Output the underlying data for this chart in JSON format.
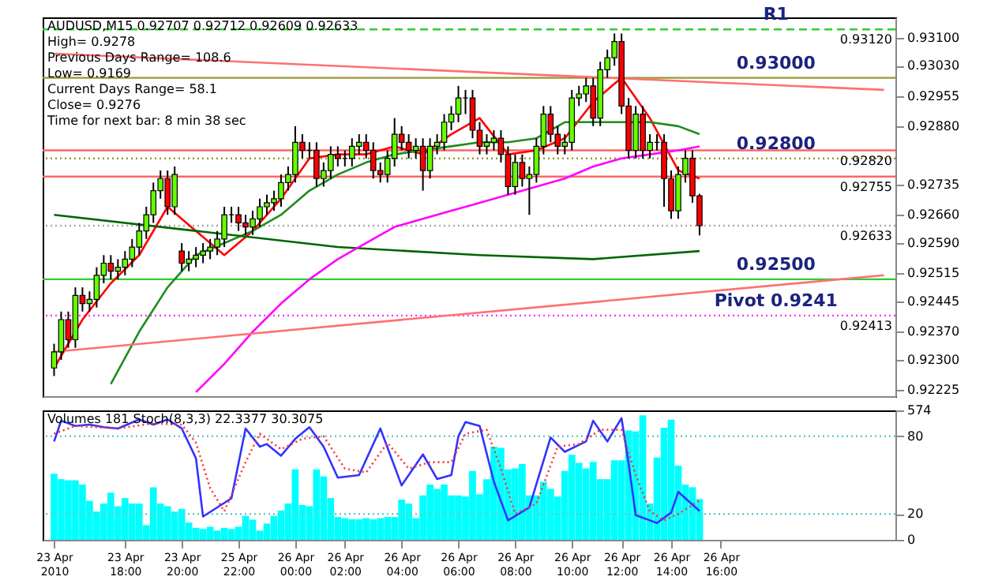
{
  "chart_data": [
    {
      "type": "candlestick",
      "title": "AUDUSD,M15  0.92707 0.92712 0.92609 0.92633",
      "annotations": [
        "High= 0.9278",
        "Previous Days Range= 108.6",
        "Low= 0.9169",
        "Current Days Range= 58.1",
        "Close= 0.9276",
        "Time for next bar: 8 min 38 sec",
        {
          "text": "0.93120",
          "y": 0.9312
        },
        {
          "text": "0.92820",
          "y": 0.9282
        },
        {
          "text": "0.92755",
          "y": 0.92755
        },
        {
          "text": "0.92633",
          "y": 0.92633
        },
        {
          "text": "0.92413",
          "y": 0.9241
        }
      ],
      "categories": [
        null,
        null,
        null,
        null,
        null,
        null,
        null,
        null,
        null,
        null,
        null,
        null,
        null,
        null,
        null,
        null,
        null,
        null,
        null,
        null,
        null,
        null,
        null,
        null,
        null,
        null,
        null,
        null,
        null,
        null,
        null,
        null,
        null,
        null,
        null,
        null,
        null,
        null,
        null,
        null,
        null,
        null,
        null,
        null,
        null,
        null,
        null,
        null,
        null,
        null,
        null,
        null,
        null,
        null,
        null,
        null,
        null,
        null,
        null,
        null,
        null,
        null,
        null,
        null,
        null,
        null,
        null,
        null,
        null,
        null,
        null,
        null,
        null,
        null,
        null,
        null,
        null,
        null,
        null,
        null,
        null,
        null,
        null,
        null,
        null,
        null,
        null,
        null,
        null,
        null,
        null,
        null,
        null,
        null,
        null,
        null,
        null,
        null,
        null,
        null,
        null,
        null,
        null,
        null,
        null,
        null,
        null,
        null,
        null,
        null,
        null,
        null,
        null,
        null,
        null,
        null,
        null,
        null
      ],
      "ohlc": [
        [
          0.9228,
          0.9234,
          0.9226,
          0.9232
        ],
        [
          0.9232,
          0.9242,
          0.923,
          0.924
        ],
        [
          0.924,
          0.9242,
          0.9233,
          0.9235
        ],
        [
          0.9235,
          0.9248,
          0.9233,
          0.9246
        ],
        [
          0.9246,
          0.9248,
          0.9242,
          0.9244
        ],
        [
          0.9244,
          0.9247,
          0.9242,
          0.9245
        ],
        [
          0.9245,
          0.9253,
          0.9243,
          0.9251
        ],
        [
          0.9251,
          0.9256,
          0.9249,
          0.9254
        ],
        [
          0.9254,
          0.9256,
          0.925,
          0.9252
        ],
        [
          0.9252,
          0.9255,
          0.925,
          0.9253
        ],
        [
          0.9253,
          0.9257,
          0.9251,
          0.9255
        ],
        [
          0.9255,
          0.926,
          0.9253,
          0.9258
        ],
        [
          0.9258,
          0.9264,
          0.9256,
          0.9262
        ],
        [
          0.9262,
          0.9268,
          0.926,
          0.9266
        ],
        [
          0.9266,
          0.9274,
          0.9264,
          0.9272
        ],
        [
          0.9272,
          0.9277,
          0.927,
          0.9275
        ],
        [
          0.9275,
          0.9277,
          0.9266,
          0.9268
        ],
        [
          0.9268,
          0.9278,
          0.9266,
          0.9276
        ],
        [
          0.9257,
          0.9259,
          0.9252,
          0.9254
        ],
        [
          0.9254,
          0.9257,
          0.9252,
          0.9255
        ],
        [
          0.9255,
          0.9258,
          0.9253,
          0.9256
        ],
        [
          0.9256,
          0.9259,
          0.9254,
          0.9257
        ],
        [
          0.9257,
          0.926,
          0.9255,
          0.9258
        ],
        [
          0.9258,
          0.9262,
          0.9256,
          0.926
        ],
        [
          0.926,
          0.9268,
          0.9258,
          0.9266
        ],
        [
          0.9266,
          0.9268,
          0.9264,
          0.9266
        ],
        [
          0.9266,
          0.9268,
          0.9262,
          0.9264
        ],
        [
          0.9264,
          0.9266,
          0.9261,
          0.9263
        ],
        [
          0.9263,
          0.9267,
          0.9261,
          0.9265
        ],
        [
          0.9265,
          0.927,
          0.9263,
          0.9268
        ],
        [
          0.9268,
          0.9271,
          0.9266,
          0.9269
        ],
        [
          0.9269,
          0.9272,
          0.9267,
          0.927
        ],
        [
          0.927,
          0.9276,
          0.9268,
          0.9274
        ],
        [
          0.9274,
          0.9278,
          0.9272,
          0.9276
        ],
        [
          0.9276,
          0.9288,
          0.9274,
          0.9284
        ],
        [
          0.9284,
          0.9286,
          0.928,
          0.9282
        ],
        [
          0.9282,
          0.9284,
          0.928,
          0.9282
        ],
        [
          0.9282,
          0.9284,
          0.9273,
          0.9275
        ],
        [
          0.9275,
          0.9279,
          0.9273,
          0.9277
        ],
        [
          0.9277,
          0.9283,
          0.9275,
          0.9281
        ],
        [
          0.9281,
          0.9283,
          0.9278,
          0.928
        ],
        [
          0.928,
          0.9282,
          0.9278,
          0.928
        ],
        [
          0.928,
          0.9285,
          0.9278,
          0.9283
        ],
        [
          0.9283,
          0.9286,
          0.9281,
          0.9284
        ],
        [
          0.9284,
          0.9286,
          0.928,
          0.9282
        ],
        [
          0.9282,
          0.9284,
          0.9275,
          0.9277
        ],
        [
          0.9277,
          0.9279,
          0.9274,
          0.9276
        ],
        [
          0.9276,
          0.9282,
          0.9274,
          0.928
        ],
        [
          0.928,
          0.929,
          0.9278,
          0.9286
        ],
        [
          0.9286,
          0.9288,
          0.9282,
          0.9284
        ],
        [
          0.9284,
          0.9286,
          0.928,
          0.9282
        ],
        [
          0.9282,
          0.9285,
          0.928,
          0.9283
        ],
        [
          0.9283,
          0.9285,
          0.9272,
          0.9277
        ],
        [
          0.9277,
          0.9285,
          0.9275,
          0.9283
        ],
        [
          0.9283,
          0.9286,
          0.9281,
          0.9284
        ],
        [
          0.9284,
          0.9291,
          0.9282,
          0.9289
        ],
        [
          0.9289,
          0.9293,
          0.9287,
          0.9291
        ],
        [
          0.9291,
          0.9298,
          0.9289,
          0.9295
        ],
        [
          0.9295,
          0.9297,
          0.9291,
          0.9295
        ],
        [
          0.9295,
          0.9297,
          0.9285,
          0.9287
        ],
        [
          0.9287,
          0.9289,
          0.9281,
          0.9283
        ],
        [
          0.9283,
          0.9286,
          0.9281,
          0.9284
        ],
        [
          0.9284,
          0.9287,
          0.9282,
          0.9285
        ],
        [
          0.9285,
          0.9287,
          0.9279,
          0.9281
        ],
        [
          0.9281,
          0.9283,
          0.9271,
          0.9273
        ],
        [
          0.9273,
          0.9281,
          0.9271,
          0.9279
        ],
        [
          0.9279,
          0.9281,
          0.9273,
          0.9275
        ],
        [
          0.9275,
          0.9278,
          0.9266,
          0.9276
        ],
        [
          0.9276,
          0.9285,
          0.9274,
          0.9283
        ],
        [
          0.9283,
          0.9293,
          0.9281,
          0.9291
        ],
        [
          0.9291,
          0.9293,
          0.9284,
          0.9286
        ],
        [
          0.9286,
          0.9288,
          0.9281,
          0.9283
        ],
        [
          0.9283,
          0.9286,
          0.9281,
          0.9284
        ],
        [
          0.9284,
          0.9297,
          0.9282,
          0.9295
        ],
        [
          0.9295,
          0.9298,
          0.9293,
          0.9296
        ],
        [
          0.9296,
          0.93,
          0.9294,
          0.9298
        ],
        [
          0.9298,
          0.93,
          0.9288,
          0.929
        ],
        [
          0.929,
          0.9304,
          0.9288,
          0.9302
        ],
        [
          0.9302,
          0.9307,
          0.93,
          0.9305
        ],
        [
          0.9305,
          0.9311,
          0.9303,
          0.9309
        ],
        [
          0.9309,
          0.9311,
          0.9291,
          0.9293
        ],
        [
          0.9293,
          0.9295,
          0.928,
          0.9282
        ],
        [
          0.9282,
          0.9293,
          0.928,
          0.9291
        ],
        [
          0.9291,
          0.9293,
          0.928,
          0.9282
        ],
        [
          0.9282,
          0.9286,
          0.928,
          0.9284
        ],
        [
          0.9284,
          0.9286,
          0.9282,
          0.9284
        ],
        [
          0.9284,
          0.9286,
          0.9268,
          0.9275
        ],
        [
          0.9275,
          0.9277,
          0.9265,
          0.9267
        ],
        [
          0.9267,
          0.9278,
          0.9265,
          0.9276
        ],
        [
          0.9276,
          0.9282,
          0.9274,
          0.928
        ],
        [
          0.928,
          0.9282,
          0.9269,
          0.92707
        ],
        [
          0.92707,
          0.92712,
          0.92609,
          0.92633
        ],
        null,
        null,
        null,
        null,
        null,
        null,
        null,
        null,
        null,
        null,
        null,
        null,
        null,
        null,
        null,
        null,
        null,
        null,
        null,
        null,
        null,
        null,
        null,
        null,
        null,
        null
      ],
      "series": [
        {
          "type": "line",
          "color": "#ff0000",
          "values": [
            0.9228,
            null,
            null,
            null,
            0.924,
            null,
            null,
            null,
            0.9249,
            null,
            null,
            null,
            0.9256,
            null,
            null,
            null,
            0.9268,
            null,
            null,
            null,
            0.9262,
            null,
            null,
            null,
            0.9256,
            null,
            null,
            null,
            0.9262,
            null,
            null,
            null,
            0.927,
            null,
            null,
            null,
            0.928,
            null,
            null,
            null,
            0.9281,
            null,
            null,
            null,
            0.9281,
            null,
            null,
            null,
            0.9283,
            null,
            null,
            null,
            0.9281,
            null,
            null,
            null,
            0.9286,
            null,
            null,
            null,
            0.929,
            null,
            null,
            null,
            0.9281,
            null,
            null,
            null,
            0.9282,
            null,
            null,
            null,
            0.9285,
            null,
            null,
            null,
            0.9294,
            null,
            null,
            null,
            0.93,
            null,
            null,
            null,
            0.929,
            null,
            null,
            null,
            0.9277,
            null,
            null,
            0.9275,
            null,
            null,
            null,
            null,
            null,
            null,
            null,
            null,
            null,
            null,
            null,
            null,
            null,
            null,
            null,
            null,
            null,
            null,
            null,
            null,
            null,
            null,
            null,
            null,
            null,
            null
          ]
        },
        {
          "type": "line",
          "color": "#1e8c1e",
          "values": [
            null,
            null,
            null,
            null,
            null,
            null,
            null,
            null,
            0.9224,
            null,
            null,
            null,
            0.9237,
            null,
            null,
            null,
            0.9248,
            null,
            null,
            null,
            0.9256,
            null,
            null,
            null,
            0.9259,
            null,
            null,
            null,
            0.9262,
            null,
            null,
            null,
            0.9266,
            null,
            null,
            null,
            0.9272,
            null,
            null,
            null,
            0.9276,
            null,
            null,
            null,
            0.9279,
            null,
            null,
            null,
            0.9281,
            null,
            null,
            null,
            0.9282,
            null,
            null,
            null,
            0.9283,
            null,
            null,
            null,
            0.9284,
            null,
            null,
            null,
            0.9284,
            null,
            null,
            null,
            0.9285,
            null,
            null,
            null,
            0.9289,
            null,
            null,
            null,
            0.9289,
            null,
            null,
            null,
            0.9289,
            null,
            null,
            null,
            0.9289,
            null,
            null,
            null,
            0.9288,
            null,
            null,
            0.9286,
            null,
            null,
            null,
            null,
            null,
            null,
            null,
            null,
            null,
            null,
            null,
            null,
            null,
            null,
            null,
            null,
            null,
            null,
            null,
            null,
            null,
            null,
            null,
            null,
            null,
            null
          ]
        },
        {
          "type": "line",
          "color": "#006400",
          "values": [
            0.9266,
            null,
            null,
            null,
            null,
            null,
            null,
            null,
            null,
            null,
            null,
            null,
            null,
            null,
            null,
            null,
            null,
            null,
            null,
            null,
            0.9262,
            null,
            null,
            null,
            null,
            null,
            null,
            null,
            null,
            null,
            null,
            null,
            null,
            null,
            null,
            null,
            null,
            null,
            null,
            null,
            0.9258,
            null,
            null,
            null,
            null,
            null,
            null,
            null,
            null,
            null,
            null,
            null,
            null,
            null,
            null,
            null,
            null,
            null,
            null,
            null,
            0.9256,
            null,
            null,
            null,
            null,
            null,
            null,
            null,
            null,
            null,
            null,
            null,
            null,
            null,
            null,
            null,
            0.9255,
            null,
            null,
            null,
            null,
            null,
            null,
            null,
            null,
            null,
            null,
            null,
            null,
            null,
            null,
            0.9257,
            null,
            null,
            null,
            null,
            null,
            null,
            null,
            null,
            null,
            null,
            null,
            null,
            null,
            null,
            null,
            null,
            null,
            null,
            null,
            null,
            null,
            null,
            null,
            null,
            null,
            null
          ]
        },
        {
          "type": "line",
          "color": "#ff00ff",
          "values": [
            null,
            null,
            null,
            null,
            null,
            null,
            null,
            null,
            null,
            null,
            null,
            null,
            null,
            null,
            null,
            null,
            null,
            null,
            null,
            null,
            0.9222,
            null,
            null,
            null,
            0.9229,
            null,
            null,
            null,
            0.9237,
            null,
            null,
            null,
            0.9244,
            null,
            null,
            null,
            0.925,
            null,
            null,
            null,
            0.9255,
            null,
            null,
            null,
            0.9259,
            null,
            null,
            null,
            0.9263,
            null,
            null,
            null,
            0.9265,
            null,
            null,
            null,
            0.9267,
            null,
            null,
            null,
            0.9269,
            null,
            null,
            null,
            0.9271,
            null,
            null,
            null,
            0.9273,
            null,
            null,
            null,
            0.9275,
            null,
            null,
            null,
            0.9278,
            null,
            null,
            null,
            0.928,
            null,
            null,
            null,
            0.9281,
            null,
            null,
            null,
            0.9282,
            null,
            null,
            0.9283,
            null,
            null,
            null,
            null,
            null,
            null,
            null,
            null,
            null,
            null,
            null,
            null,
            null,
            null,
            null,
            null,
            null,
            null,
            null,
            null,
            null,
            null,
            null,
            null,
            null,
            null
          ]
        },
        {
          "type": "line",
          "color": "#ff7070",
          "values": [
            0.9306,
            null,
            null,
            null,
            null,
            null,
            null,
            null,
            null,
            null,
            null,
            null,
            null,
            null,
            null,
            null,
            null,
            null,
            null,
            null,
            null,
            null,
            null,
            null,
            null,
            null,
            null,
            null,
            null,
            null,
            null,
            null,
            null,
            null,
            null,
            null,
            null,
            null,
            null,
            null,
            null,
            null,
            null,
            null,
            null,
            null,
            null,
            null,
            null,
            null,
            null,
            null,
            null,
            null,
            null,
            null,
            null,
            null,
            null,
            null,
            null,
            null,
            null,
            null,
            null,
            null,
            null,
            null,
            null,
            null,
            null,
            null,
            null,
            null,
            null,
            null,
            null,
            null,
            null,
            null,
            null,
            null,
            null,
            null,
            null,
            null,
            null,
            null,
            null,
            null,
            null,
            null,
            null,
            null,
            null,
            null,
            null,
            null,
            null,
            null,
            null,
            null,
            null,
            null,
            null,
            null,
            null,
            null,
            null,
            null,
            null,
            null,
            null,
            null,
            null,
            null,
            null,
            0.9297
          ]
        },
        {
          "type": "line",
          "color": "#ff7070",
          "values": [
            0.9232,
            null,
            null,
            null,
            null,
            null,
            null,
            null,
            null,
            null,
            null,
            null,
            null,
            null,
            null,
            null,
            null,
            null,
            null,
            null,
            null,
            null,
            null,
            null,
            null,
            null,
            null,
            null,
            null,
            null,
            null,
            null,
            null,
            null,
            null,
            null,
            null,
            null,
            null,
            null,
            null,
            null,
            null,
            null,
            null,
            null,
            null,
            null,
            null,
            null,
            null,
            null,
            null,
            null,
            null,
            null,
            null,
            null,
            null,
            null,
            null,
            null,
            null,
            null,
            null,
            null,
            null,
            null,
            null,
            null,
            null,
            null,
            null,
            null,
            null,
            null,
            null,
            null,
            null,
            null,
            null,
            null,
            null,
            null,
            null,
            null,
            null,
            null,
            null,
            null,
            null,
            null,
            null,
            null,
            null,
            null,
            null,
            null,
            null,
            null,
            null,
            null,
            null,
            null,
            null,
            null,
            null,
            null,
            null,
            null,
            null,
            null,
            null,
            null,
            null,
            null,
            null,
            0.9251
          ]
        }
      ],
      "ref_lines": [
        {
          "axis": "y",
          "value": 0.9312,
          "label": "R1",
          "color": "#33cc33",
          "line_style": "dashed"
        },
        {
          "axis": "y",
          "value": 0.93,
          "label": "0.93000",
          "color": "#999933"
        },
        {
          "axis": "y",
          "value": 0.9282,
          "color": "#ff6666"
        },
        {
          "axis": "y",
          "value": 0.928,
          "label": "0.92800",
          "color": "#999933",
          "line_style": "dotted"
        },
        {
          "axis": "y",
          "value": 0.92755,
          "color": "#ff6666"
        },
        {
          "axis": "y",
          "value": 0.92633,
          "color": "#aaaaaa",
          "line_style": "dotted"
        },
        {
          "axis": "y",
          "value": 0.925,
          "label": "0.92500",
          "color": "#33cc33"
        },
        {
          "axis": "y",
          "value": 0.9241,
          "label": "Pivot 0.9241",
          "color": "#ff33ff",
          "line_style": "dotted"
        }
      ],
      "ylim": [
        0.9221,
        0.9315
      ],
      "yticks": [
        {
          "value": 0.931,
          "label": "0.93100"
        },
        {
          "value": 0.9303,
          "label": "0.93030"
        },
        {
          "value": 0.92955,
          "label": "0.92955"
        },
        {
          "value": 0.9288,
          "label": "0.92880"
        },
        {
          "value": 0.92735,
          "label": "0.92735"
        },
        {
          "value": 0.9266,
          "label": "0.92660"
        },
        {
          "value": 0.9259,
          "label": "0.92590"
        },
        {
          "value": 0.92515,
          "label": "0.92515"
        },
        {
          "value": 0.92445,
          "label": "0.92445"
        },
        {
          "value": 0.9237,
          "label": "0.92370"
        },
        {
          "value": 0.923,
          "label": "0.92300"
        },
        {
          "value": 0.92225,
          "label": "0.92225"
        }
      ],
      "tick_labels": "y",
      "grid": false
    },
    {
      "type": "bar",
      "annotations": [
        "Volumes 181  Stoch(8,3,3) 22.3377 30.3075"
      ],
      "categories": [
        "23 Apr 2010",
        null,
        null,
        null,
        null,
        null,
        null,
        null,
        null,
        null,
        "23 Apr 18:00",
        null,
        null,
        null,
        null,
        null,
        null,
        null,
        "23 Apr 20:00",
        null,
        null,
        null,
        null,
        null,
        null,
        null,
        "25 Apr 22:00",
        null,
        null,
        null,
        null,
        null,
        null,
        null,
        "26 Apr 00:00",
        null,
        null,
        null,
        null,
        null,
        null,
        "26 Apr 02:00",
        null,
        null,
        null,
        null,
        null,
        null,
        null,
        "26 Apr 04:00",
        null,
        null,
        null,
        null,
        null,
        null,
        null,
        "26 Apr 06:00",
        null,
        null,
        null,
        null,
        null,
        null,
        null,
        "26 Apr 08:00",
        null,
        null,
        null,
        null,
        null,
        null,
        null,
        "26 Apr 10:00",
        null,
        null,
        null,
        null,
        null,
        null,
        "26 Apr 12:00",
        null,
        null,
        null,
        null,
        null,
        null,
        "26 Apr 14:00",
        null,
        null,
        null,
        null,
        null,
        null,
        "26 Apr 16:00",
        null,
        null,
        null,
        null,
        null,
        null,
        null,
        null,
        null,
        null,
        null,
        null,
        null,
        null,
        null,
        null,
        null,
        null,
        null,
        null,
        null,
        null,
        null
      ],
      "series": [
        {
          "type": "bar",
          "axis": "y2",
          "color": "#00ffff",
          "values": [
            293,
            269,
            264,
            264,
            245,
            173,
            125,
            161,
            209,
            149,
            185,
            161,
            161,
            65,
            233,
            161,
            149,
            125,
            137,
            77,
            53,
            48,
            58,
            41,
            53,
            48,
            58,
            106,
            89,
            41,
            72,
            106,
            130,
            161,
            312,
            154,
            149,
            312,
            281,
            185,
            101,
            96,
            91,
            91,
            96,
            91,
            96,
            101,
            101,
            178,
            161,
            96,
            197,
            245,
            226,
            245,
            197,
            197,
            192,
            305,
            202,
            269,
            413,
            408,
            312,
            317,
            336,
            197,
            197,
            257,
            226,
            192,
            305,
            377,
            341,
            317,
            346,
            269,
            269,
            353,
            353,
            485,
            480,
            552,
            161,
            365,
            497,
            533,
            329,
            245,
            233,
            181,
            null,
            null,
            null,
            null,
            null,
            null,
            null,
            null,
            null,
            null,
            null,
            null,
            null,
            null,
            null,
            null,
            null,
            null,
            null,
            null,
            null,
            null,
            null,
            null,
            null,
            null
          ]
        },
        {
          "type": "line",
          "color": "#3333ff",
          "values": [
            76,
            92,
            null,
            88,
            null,
            89,
            null,
            87,
            null,
            86,
            null,
            null,
            93,
            null,
            89,
            null,
            93,
            null,
            86,
            null,
            63,
            18,
            null,
            null,
            null,
            32,
            null,
            86,
            null,
            72,
            74,
            null,
            65,
            null,
            78,
            null,
            87,
            null,
            72,
            null,
            48,
            null,
            null,
            50,
            null,
            null,
            86,
            null,
            null,
            42,
            null,
            null,
            66,
            null,
            47,
            null,
            50,
            80,
            91,
            null,
            88,
            null,
            45,
            null,
            15,
            null,
            null,
            25,
            null,
            null,
            79,
            null,
            68,
            null,
            null,
            76,
            92,
            null,
            76,
            null,
            94,
            59,
            19,
            null,
            15,
            13,
            null,
            21,
            37,
            null,
            null,
            22.3,
            null,
            null,
            null,
            null,
            null,
            null,
            null,
            null,
            null,
            null,
            null,
            null,
            null,
            null,
            null,
            null,
            null,
            null,
            null,
            null,
            null,
            null,
            null,
            null,
            null,
            null
          ]
        },
        {
          "type": "line",
          "color": "#ff3333",
          "line_style": "dotted",
          "values": [
            82,
            null,
            null,
            88,
            null,
            null,
            null,
            null,
            null,
            86,
            null,
            null,
            null,
            null,
            90,
            null,
            null,
            null,
            89,
            null,
            75,
            null,
            40,
            null,
            22,
            null,
            null,
            60,
            null,
            82,
            null,
            null,
            70,
            null,
            null,
            78,
            null,
            null,
            80,
            null,
            null,
            55,
            null,
            null,
            52,
            null,
            null,
            75,
            null,
            null,
            55,
            null,
            null,
            60,
            null,
            null,
            60,
            null,
            82,
            null,
            null,
            85,
            null,
            55,
            null,
            20,
            null,
            null,
            28,
            null,
            null,
            72,
            null,
            null,
            74,
            null,
            null,
            85,
            null,
            null,
            85,
            null,
            50,
            null,
            22,
            null,
            15,
            null,
            20,
            null,
            null,
            30.3,
            null,
            null,
            null,
            null,
            null,
            null,
            null,
            null,
            null,
            null,
            null,
            null,
            null,
            null,
            null,
            null,
            null,
            null,
            null,
            null,
            null,
            null,
            null,
            null,
            null,
            null
          ]
        }
      ],
      "ref_lines": [
        {
          "axis": "y",
          "value": 80,
          "color": "#66cccc",
          "line_style": "dotted"
        },
        {
          "axis": "y",
          "value": 20,
          "color": "#66cccc",
          "line_style": "dotted"
        }
      ],
      "ylim": [
        0,
        100
      ],
      "yticks": [
        0,
        20,
        80
      ],
      "y2lim": [
        0,
        574
      ],
      "y2ticks": [
        574
      ],
      "grid": false
    }
  ]
}
